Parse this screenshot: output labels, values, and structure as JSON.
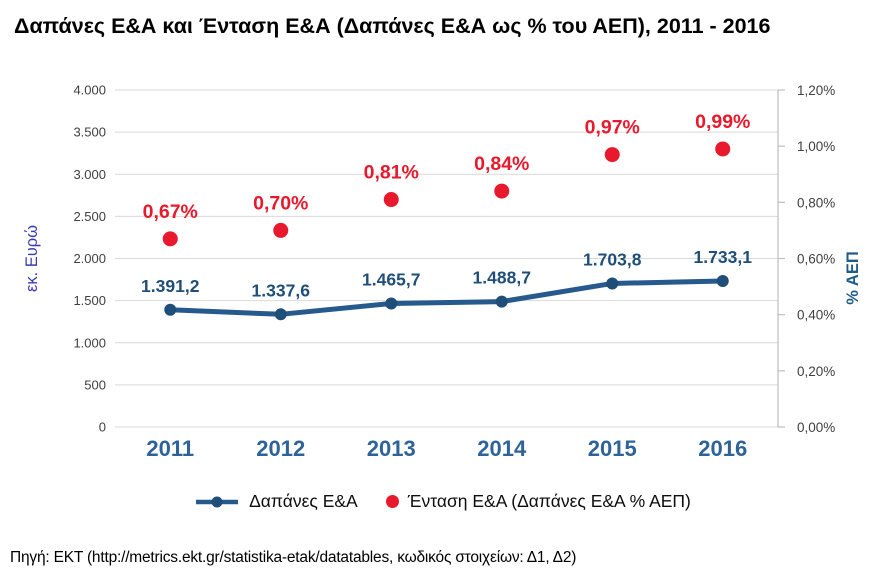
{
  "page": {
    "title": "Δαπάνες Ε&Α και Ένταση Ε&Α (Δαπάνες Ε&Α ως % του ΑΕΠ), 2011 - 2016",
    "source": "Πηγή: ΕΚΤ (http://metrics.ekt.gr/statistika-etak/datatables, κωδικός στοιχείων: Δ1, Δ2)"
  },
  "chart_data": {
    "type": "line",
    "title": "Δαπάνες Ε&Α και Ένταση Ε&Α (Δαπάνες Ε&Α ως % του ΑΕΠ), 2011 - 2016",
    "categories": [
      "2011",
      "2012",
      "2013",
      "2014",
      "2015",
      "2016"
    ],
    "series": [
      {
        "name": "Δαπάνες Ε&Α",
        "type": "line",
        "axis": "left",
        "color": "#26598C",
        "marker_color": "#1F4E79",
        "label_color": "#1F4E79",
        "values": [
          1391.2,
          1337.6,
          1465.7,
          1488.7,
          1703.8,
          1733.1
        ],
        "labels": [
          "1.391,2",
          "1.337,6",
          "1.465,7",
          "1.488,7",
          "1.703,8",
          "1.733,1"
        ]
      },
      {
        "name": "Ένταση Ε&Α (Δαπάνες Ε&Α % ΑΕΠ)",
        "type": "scatter",
        "axis": "right",
        "color": "#E8192C",
        "label_color": "#E8192C",
        "values": [
          0.67,
          0.7,
          0.81,
          0.84,
          0.97,
          0.99
        ],
        "labels": [
          "0,67%",
          "0,70%",
          "0,81%",
          "0,84%",
          "0,97%",
          "0,99%"
        ]
      }
    ],
    "left_axis": {
      "title": "εκ. Ευρώ",
      "min": 0,
      "max": 4000,
      "tick_step": 500,
      "tick_labels": [
        "4.000",
        "3.500",
        "3.000",
        "2.500",
        "2.000",
        "1.500",
        "1.000",
        "500",
        "0"
      ],
      "title_color": "#3A3AAF",
      "tick_color": "#404040"
    },
    "right_axis": {
      "title": "% ΑΕΠ",
      "min": 0,
      "max": 1.2,
      "tick_step": 0.2,
      "tick_labels": [
        "1,20%",
        "1,00%",
        "0,80%",
        "0,60%",
        "0,40%",
        "0,20%",
        "0,00%"
      ],
      "title_color": "#1F5C8A",
      "tick_color": "#404040"
    },
    "x_axis": {
      "label_color": "#2E6399"
    },
    "grid": true,
    "grid_color": "#D9D9D9",
    "axis_line_color": "#BFBFBF",
    "legend_position": "bottom"
  },
  "legend": {
    "items": [
      {
        "label": "Δαπάνες Ε&Α",
        "marker": "line-dot",
        "color": "#26598C",
        "marker_color": "#1F4E79"
      },
      {
        "label": "Ένταση Ε&Α (Δαπάνες Ε&Α % ΑΕΠ)",
        "marker": "dot",
        "color": "#E8192C"
      }
    ]
  }
}
